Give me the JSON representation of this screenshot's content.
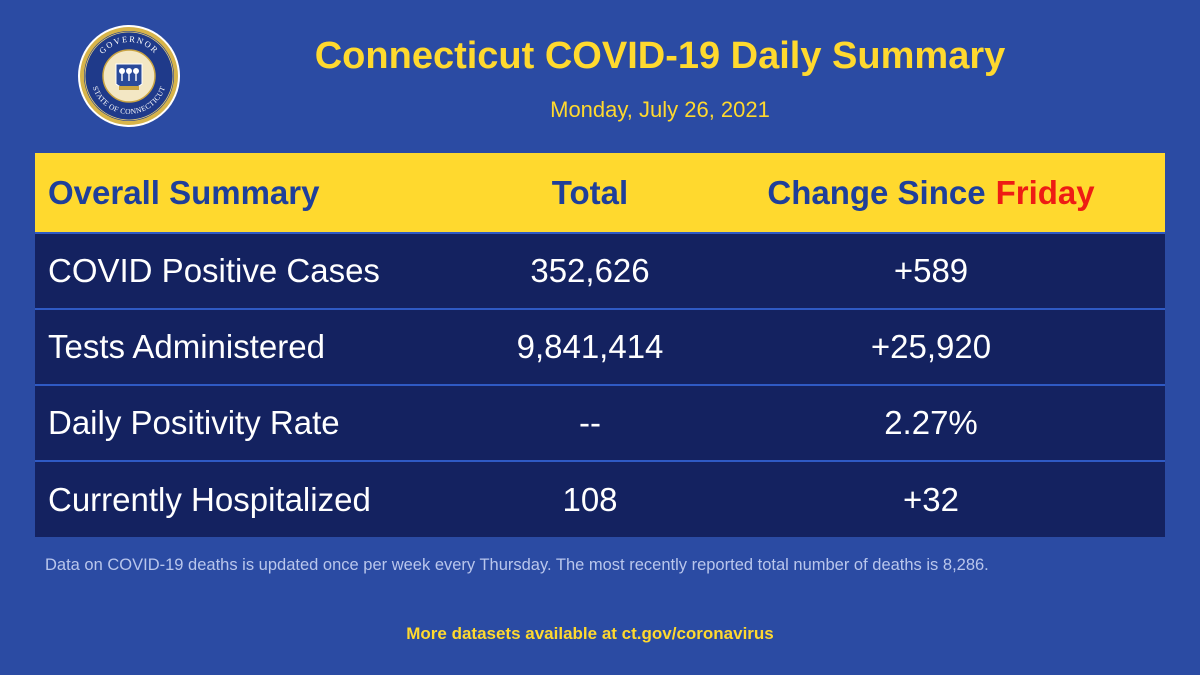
{
  "header": {
    "title": "Connecticut COVID-19 Daily Summary",
    "date": "Monday, July 26, 2021",
    "seal": {
      "icon": "state-seal-icon",
      "text_top": "GOVERNOR",
      "text_bottom": "STATE OF CONNECTICUT"
    }
  },
  "table": {
    "headers": {
      "label": "Overall Summary",
      "total": "Total",
      "change": "Change Since",
      "change_day": "Friday"
    },
    "rows": [
      {
        "label": "COVID Positive Cases",
        "total": "352,626",
        "change": "+589"
      },
      {
        "label": "Tests Administered",
        "total": "9,841,414",
        "change": "+25,920"
      },
      {
        "label": "Daily Positivity Rate",
        "total": "--",
        "change": "2.27%"
      },
      {
        "label": "Currently Hospitalized",
        "total": "108",
        "change": "+32"
      }
    ]
  },
  "note": "Data on COVID-19 deaths is updated once per week every Thursday. The most recently reported total number of deaths is 8,286.",
  "footer": "More datasets available at ct.gov/coronavirus",
  "colors": {
    "background": "#2b4ba3",
    "accent_yellow": "#ffd92e",
    "row_navy": "#142260",
    "header_text": "#1f3f9a",
    "highlight_red": "#ee1c14"
  }
}
